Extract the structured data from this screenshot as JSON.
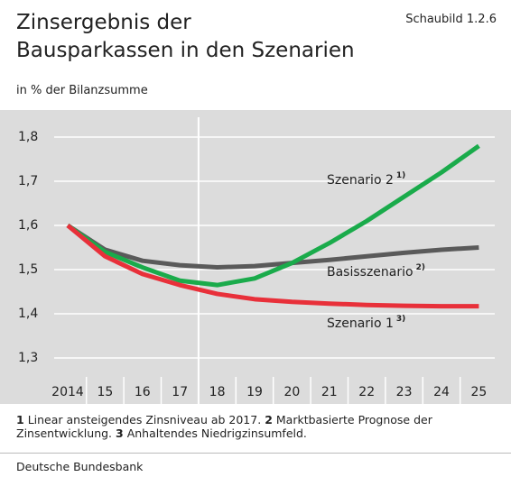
{
  "chart_data": {
    "type": "line",
    "title_lines": [
      "Zinsergebnis der",
      "Bausparkassen in den Szenarien"
    ],
    "figure_label": "Schaubild 1.2.6",
    "subtitle": "in % der Bilanzsumme",
    "categories": [
      "2014",
      "15",
      "16",
      "17",
      "18",
      "19",
      "20",
      "21",
      "22",
      "23",
      "24",
      "25"
    ],
    "series": [
      {
        "name": "Basisszenario",
        "footnote_ref": "2)",
        "color": "#5a5a5a",
        "values": [
          1.6,
          1.545,
          1.52,
          1.51,
          1.505,
          1.508,
          1.515,
          1.522,
          1.53,
          1.538,
          1.545,
          1.55
        ]
      },
      {
        "name": "Szenario 2",
        "footnote_ref": "1)",
        "color": "#1aab4b",
        "values": [
          1.6,
          1.54,
          1.505,
          1.475,
          1.465,
          1.48,
          1.515,
          1.56,
          1.61,
          1.665,
          1.72,
          1.78
        ]
      },
      {
        "name": "Szenario 1",
        "footnote_ref": "3)",
        "color": "#e8303a",
        "values": [
          1.6,
          1.53,
          1.49,
          1.465,
          1.445,
          1.433,
          1.427,
          1.423,
          1.42,
          1.418,
          1.417,
          1.417
        ]
      }
    ],
    "ylim": [
      1.3,
      1.8
    ],
    "yticks": [
      {
        "value": 1.3,
        "label": "1,3"
      },
      {
        "value": 1.4,
        "label": "1,4"
      },
      {
        "value": 1.5,
        "label": "1,5"
      },
      {
        "value": 1.6,
        "label": "1,6"
      },
      {
        "value": 1.7,
        "label": "1,7"
      },
      {
        "value": 1.8,
        "label": "1,8"
      }
    ],
    "grid": true,
    "footnotes": [
      {
        "number": "1",
        "text": "Linear ansteigendes Zinsniveau ab 2017."
      },
      {
        "number": "2",
        "text": "Marktbasierte Prognose der Zinsentwicklung."
      },
      {
        "number": "3",
        "text": "Anhaltendes Niedrigzinsumfeld."
      }
    ],
    "source": "Deutsche Bundesbank"
  }
}
